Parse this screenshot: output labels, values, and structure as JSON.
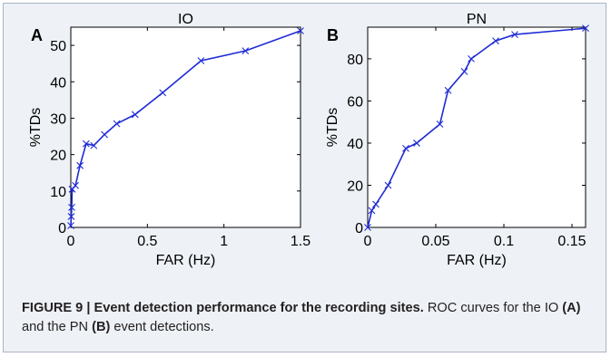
{
  "colors": {
    "line": "#1f2bd6",
    "axis": "#000000",
    "panel_bg": "#ffffff",
    "figure_bg": "#eef2f6",
    "caption_text": "#231f20"
  },
  "chart_data": [
    {
      "type": "line",
      "panel_label": "A",
      "title": "IO",
      "xlabel": "FAR (Hz)",
      "ylabel": "%TDs",
      "xlim": [
        0,
        1.5
      ],
      "ylim": [
        0,
        55
      ],
      "xticks": [
        0,
        0.5,
        1,
        1.5
      ],
      "xtick_labels": [
        "0",
        "0.5",
        "1",
        "1.5"
      ],
      "yticks": [
        0,
        10,
        20,
        30,
        40,
        50
      ],
      "ytick_labels": [
        "0",
        "10",
        "20",
        "30",
        "40",
        "50"
      ],
      "grid": false,
      "marker": "x",
      "x": [
        0.0,
        0.003,
        0.006,
        0.009,
        0.03,
        0.06,
        0.1,
        0.15,
        0.22,
        0.3,
        0.42,
        0.6,
        0.85,
        1.14,
        1.5
      ],
      "y": [
        0.5,
        3,
        5.5,
        10.5,
        11.5,
        17,
        23,
        22.5,
        25.5,
        28.5,
        31,
        37,
        45.8,
        48.5,
        54
      ]
    },
    {
      "type": "line",
      "panel_label": "B",
      "title": "PN",
      "xlabel": "FAR (Hz)",
      "ylabel": "%TDs",
      "xlim": [
        0,
        0.16
      ],
      "ylim": [
        0,
        95
      ],
      "xticks": [
        0,
        0.05,
        0.1,
        0.15
      ],
      "xtick_labels": [
        "0",
        "0.05",
        "0.1",
        "0.15"
      ],
      "yticks": [
        0,
        20,
        40,
        60,
        80
      ],
      "ytick_labels": [
        "0",
        "20",
        "40",
        "60",
        "80"
      ],
      "grid": false,
      "marker": "x",
      "x": [
        0.0,
        0.003,
        0.006,
        0.015,
        0.028,
        0.036,
        0.053,
        0.059,
        0.071,
        0.076,
        0.094,
        0.108,
        0.16
      ],
      "y": [
        0,
        8,
        11,
        20,
        37.5,
        40,
        49,
        65,
        74,
        80,
        88.5,
        91.5,
        94.5
      ]
    }
  ],
  "caption": {
    "figure_label": "FIGURE 9 | Event detection performance for the recording sites.",
    "text_1": " ROC curves for the IO ",
    "ref_a": "(A)",
    "text_2": " and the PN ",
    "ref_b": "(B)",
    "text_3": " event detections."
  }
}
